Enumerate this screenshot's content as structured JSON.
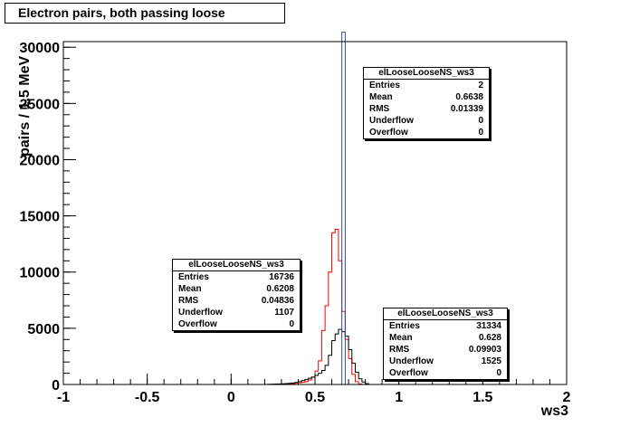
{
  "title": "Electron pairs, both passing loose",
  "chart_data": {
    "type": "histogram",
    "xlabel": "ws3",
    "ylabel": "pairs / 1.5 MeV",
    "xlim": [
      -1,
      2
    ],
    "ylim": [
      0,
      30500
    ],
    "xticks": [
      "-1",
      "-0.5",
      "0",
      "0.5",
      "1",
      "1.5",
      "2"
    ],
    "yticks": [
      "0",
      "5000",
      "10000",
      "15000",
      "20000",
      "25000",
      "30000"
    ],
    "bin_width": 0.02,
    "series": [
      {
        "color": "#ff0000",
        "bins": [
          [
            0.3,
            20
          ],
          [
            0.32,
            40
          ],
          [
            0.34,
            60
          ],
          [
            0.36,
            80
          ],
          [
            0.38,
            110
          ],
          [
            0.4,
            150
          ],
          [
            0.42,
            200
          ],
          [
            0.44,
            260
          ],
          [
            0.46,
            400
          ],
          [
            0.48,
            650
          ],
          [
            0.5,
            1200
          ],
          [
            0.52,
            2100
          ],
          [
            0.54,
            4800
          ],
          [
            0.56,
            7000
          ],
          [
            0.58,
            10000
          ],
          [
            0.6,
            13500
          ],
          [
            0.62,
            13800
          ],
          [
            0.64,
            11000
          ],
          [
            0.66,
            6500
          ],
          [
            0.68,
            4000
          ],
          [
            0.7,
            2300
          ],
          [
            0.72,
            900
          ],
          [
            0.74,
            250
          ],
          [
            0.76,
            40
          ]
        ]
      },
      {
        "color": "#000000",
        "bins": [
          [
            0.22,
            20
          ],
          [
            0.24,
            30
          ],
          [
            0.26,
            40
          ],
          [
            0.28,
            50
          ],
          [
            0.3,
            60
          ],
          [
            0.32,
            80
          ],
          [
            0.34,
            100
          ],
          [
            0.36,
            130
          ],
          [
            0.38,
            180
          ],
          [
            0.4,
            250
          ],
          [
            0.42,
            350
          ],
          [
            0.44,
            450
          ],
          [
            0.46,
            550
          ],
          [
            0.48,
            650
          ],
          [
            0.5,
            800
          ],
          [
            0.52,
            1000
          ],
          [
            0.54,
            1250
          ],
          [
            0.56,
            1700
          ],
          [
            0.58,
            2600
          ],
          [
            0.6,
            3900
          ],
          [
            0.62,
            4500
          ],
          [
            0.64,
            4900
          ],
          [
            0.66,
            4700
          ],
          [
            0.68,
            4300
          ],
          [
            0.7,
            3100
          ],
          [
            0.72,
            1900
          ],
          [
            0.74,
            1100
          ],
          [
            0.76,
            500
          ],
          [
            0.78,
            220
          ],
          [
            0.8,
            70
          ]
        ]
      },
      {
        "color": "#2e4a9e",
        "bins": [
          [
            0.66,
            31334
          ]
        ]
      }
    ]
  },
  "stats": [
    {
      "name": "elLooseLooseNS_ws3",
      "rows": [
        [
          "Entries",
          "2"
        ],
        [
          "Mean",
          "0.6638"
        ],
        [
          "RMS",
          "0.01339"
        ],
        [
          "Underflow",
          "0"
        ],
        [
          "Overflow",
          "0"
        ]
      ]
    },
    {
      "name": "elLooseLooseNS_ws3",
      "rows": [
        [
          "Entries",
          "16736"
        ],
        [
          "Mean",
          "0.6208"
        ],
        [
          "RMS",
          "0.04836"
        ],
        [
          "Underflow",
          "1107"
        ],
        [
          "Overflow",
          "0"
        ]
      ]
    },
    {
      "name": "elLooseLooseNS_ws3",
      "rows": [
        [
          "Entries",
          "31334"
        ],
        [
          "Mean",
          "0.628"
        ],
        [
          "RMS",
          "0.09903"
        ],
        [
          "Underflow",
          "1525"
        ],
        [
          "Overflow",
          "0"
        ]
      ]
    }
  ]
}
